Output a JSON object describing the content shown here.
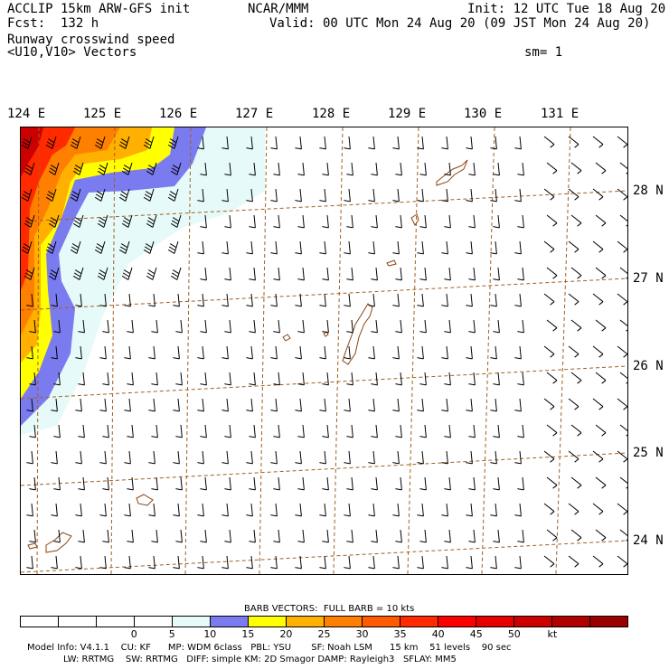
{
  "header": {
    "model": "ACCLIP 15km ARW-GFS init",
    "forecast": "Fcst:  132 h",
    "center": "NCAR/MMM",
    "init": "Init: 12 UTC Tue 18 Aug 20",
    "valid": "Valid: 00 UTC Mon 24 Aug 20 (09 JST Mon 24 Aug 20)",
    "field": "Runway crosswind speed",
    "vectors": "<U10,V10> Vectors",
    "smoothing": "sm= 1"
  },
  "map": {
    "longitude_labels": [
      "124 E",
      "125 E",
      "126 E",
      "127 E",
      "128 E",
      "129 E",
      "130 E",
      "131 E"
    ],
    "latitude_labels": [
      "28 N",
      "27 N",
      "26 N",
      "25 N",
      "24 N"
    ]
  },
  "legend": {
    "barb_title": "BARB VECTORS:  FULL BARB = 10 kts",
    "tick_labels": [
      "0",
      "5",
      "10",
      "15",
      "20",
      "25",
      "30",
      "35",
      "40",
      "45",
      "50",
      "kt"
    ],
    "colors": [
      "#ffffff",
      "#ffffff",
      "#ffffff",
      "#ffffff",
      "#e6fafa",
      "#7b7bf0",
      "#ffff00",
      "#ffb000",
      "#ff8000",
      "#ff5a00",
      "#ff2a00",
      "#ff0000",
      "#e60000",
      "#cc0000",
      "#b00000",
      "#9a0000"
    ]
  },
  "footer": {
    "line1": "Model Info: V4.1.1    CU: KF      MP: WDM 6class   PBL: YSU       SF: Noah LSM      15 km    51 levels    90 sec",
    "line2": "LW: RRTMG    SW: RRTMG   DIFF: simple KM: 2D Smagor DAMP: Rayleigh3   SFLAY: MM5"
  }
}
